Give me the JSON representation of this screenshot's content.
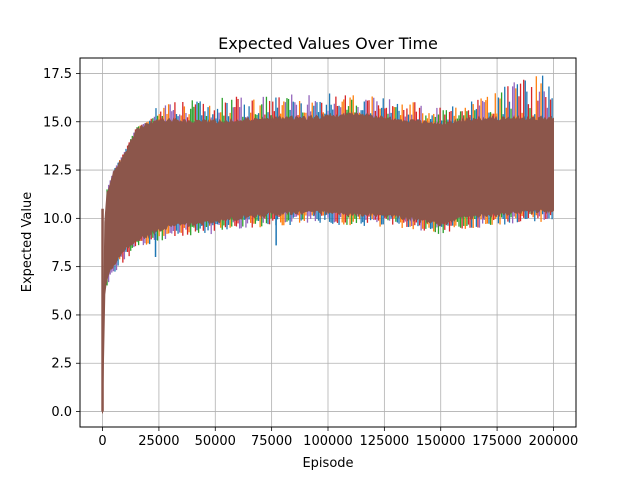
{
  "chart_data": {
    "type": "line",
    "title": "Expected Values Over Time",
    "xlabel": "Episode",
    "ylabel": "Expected Value",
    "xlim": [
      -10000,
      210000
    ],
    "ylim": [
      -0.8,
      18.3
    ],
    "xticks": [
      0,
      25000,
      50000,
      75000,
      100000,
      125000,
      150000,
      175000,
      200000
    ],
    "xtick_labels": [
      "0",
      "25000",
      "50000",
      "75000",
      "100000",
      "125000",
      "150000",
      "175000",
      "200000"
    ],
    "yticks": [
      0.0,
      2.5,
      5.0,
      7.5,
      10.0,
      12.5,
      15.0,
      17.5
    ],
    "ytick_labels": [
      "0.0",
      "2.5",
      "5.0",
      "7.5",
      "10.0",
      "12.5",
      "15.0",
      "17.5"
    ],
    "grid": true,
    "legend": "none",
    "series_colors": [
      "#1f77b4",
      "#ff7f0e",
      "#2ca02c",
      "#d62728",
      "#9467bd",
      "#8c564b"
    ],
    "dominant_color": "#8c564b",
    "band": {
      "x": [
        0,
        1000,
        2000,
        5000,
        10000,
        15000,
        20000,
        25000,
        30000,
        40000,
        50000,
        60000,
        75000,
        90000,
        100000,
        110000,
        120000,
        130000,
        140000,
        150000,
        160000,
        175000,
        185000,
        200000
      ],
      "upper": [
        0.0,
        10.0,
        11.5,
        12.5,
        13.5,
        14.7,
        15.0,
        15.2,
        15.2,
        15.1,
        15.1,
        15.2,
        15.3,
        15.3,
        15.4,
        15.5,
        15.4,
        15.2,
        15.1,
        15.0,
        15.2,
        15.3,
        15.3,
        15.3
      ],
      "lower": [
        0.0,
        6.0,
        6.8,
        7.5,
        8.3,
        8.8,
        9.0,
        9.3,
        9.5,
        9.6,
        9.7,
        9.9,
        10.1,
        10.2,
        10.2,
        10.1,
        10.1,
        10.0,
        9.8,
        9.6,
        9.9,
        10.1,
        10.2,
        10.3
      ],
      "upper_spikes": [
        [
          0,
          10.0
        ],
        [
          25000,
          16.1
        ],
        [
          37000,
          16.1
        ],
        [
          57000,
          16.3
        ],
        [
          80000,
          16.4
        ],
        [
          110000,
          16.5
        ],
        [
          150000,
          15.9
        ],
        [
          170000,
          16.3
        ],
        [
          182000,
          17.2
        ],
        [
          192000,
          17.5
        ],
        [
          200000,
          17.4
        ]
      ],
      "lower_spikes": [
        [
          23500,
          8.0
        ],
        [
          77000,
          8.6
        ]
      ]
    }
  }
}
